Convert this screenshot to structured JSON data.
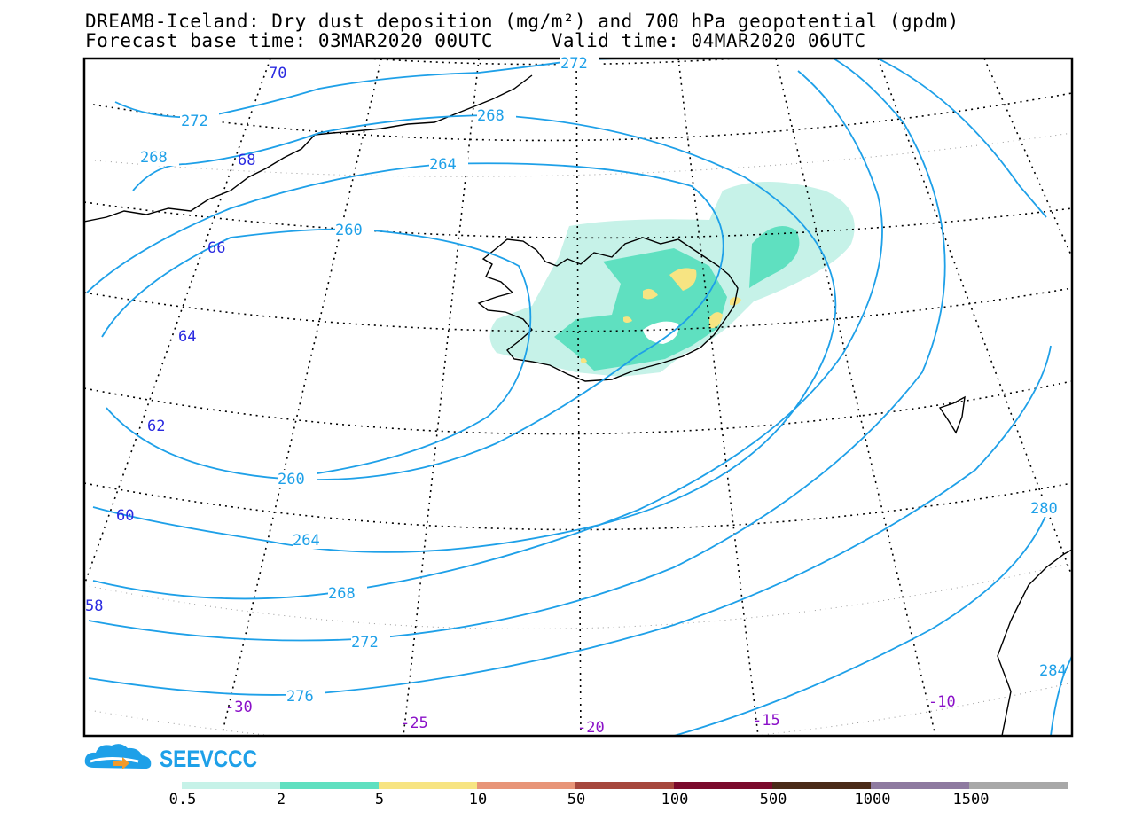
{
  "title": {
    "line1": "DREAM8-Iceland: Dry dust deposition (mg/m²) and 700 hPa geopotential (gpdm)",
    "forecast_base": "Forecast base time: 03MAR2020 00UTC",
    "valid_time": "Valid time: 04MAR2020 06UTC"
  },
  "contour_labels": [
    "272",
    "272",
    "268",
    "268",
    "264",
    "260",
    "260",
    "264",
    "268",
    "272",
    "276",
    "280",
    "284"
  ],
  "lat_labels": [
    "70",
    "68",
    "66",
    "64",
    "62",
    "60",
    "58"
  ],
  "lon_labels": [
    "-30",
    "-25",
    "-20",
    "-15",
    "-10"
  ],
  "logo_text": "SEEVCCC",
  "legend": {
    "ticks": [
      "0.5",
      "2",
      "5",
      "10",
      "50",
      "100",
      "500",
      "1000",
      "1500"
    ],
    "colors": [
      "#c6f2e8",
      "#5fe0c0",
      "#f7e482",
      "#e89578",
      "#a6473d",
      "#7a0a2c",
      "#4a2a18",
      "#8e7aa0",
      "#a8a8a8"
    ]
  },
  "colors": {
    "contour": "#1ea0e8",
    "lat_label": "#2a2ae0",
    "lon_label": "#8a10c8"
  }
}
